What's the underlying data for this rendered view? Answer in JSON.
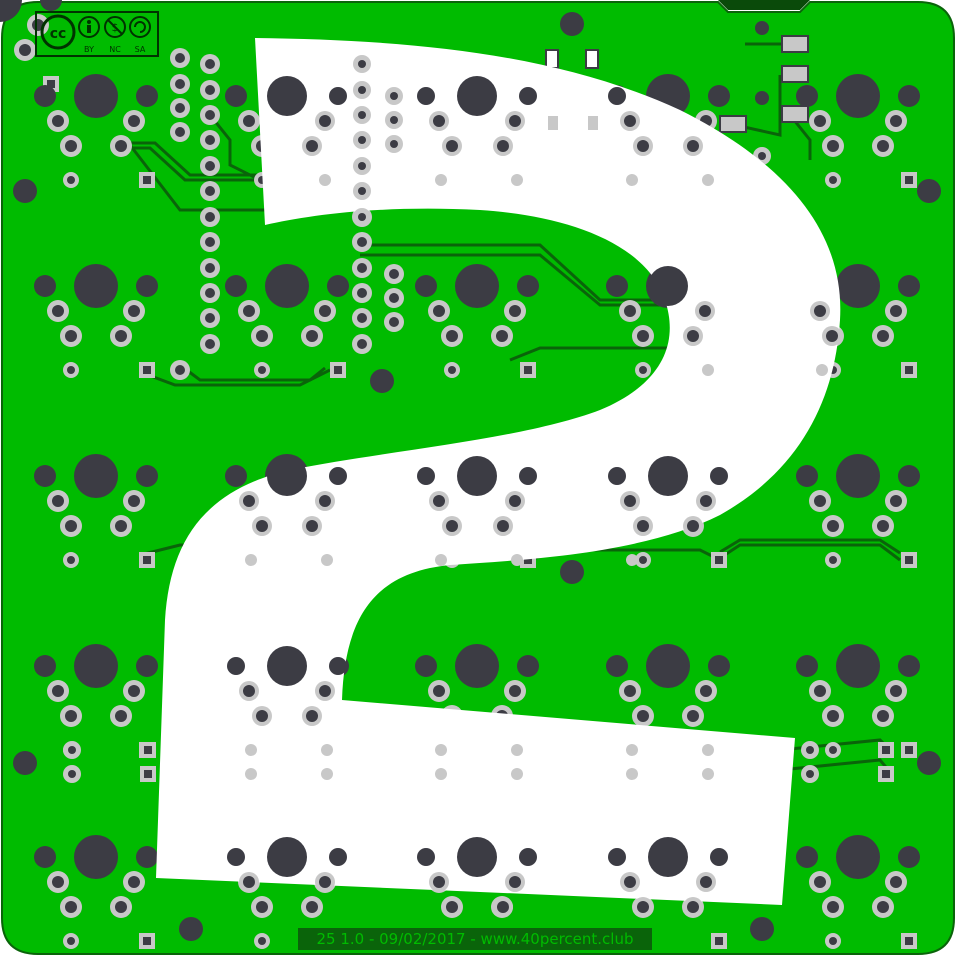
{
  "board": {
    "footer_label": "25 1.0 - 09/02/2017 - www.40percent.club",
    "license": {
      "cc_label": "cc",
      "terms": [
        "BY",
        "NC",
        "SA"
      ]
    },
    "colors": {
      "pcb_green": "#00bb00",
      "copper_trace": "#0a640a",
      "drill_dark": "#3c3c44",
      "pad_silver": "#c8c8c8",
      "overlay_white": "#ffffff",
      "text_dark": "#003300"
    },
    "overlay_shape": "numeral-2",
    "icons": {
      "cc_logo": "creative-commons-icon",
      "by_icon": "attribution-person-icon",
      "nc_icon": "non-commercial-icon",
      "sa_icon": "share-alike-icon"
    }
  }
}
